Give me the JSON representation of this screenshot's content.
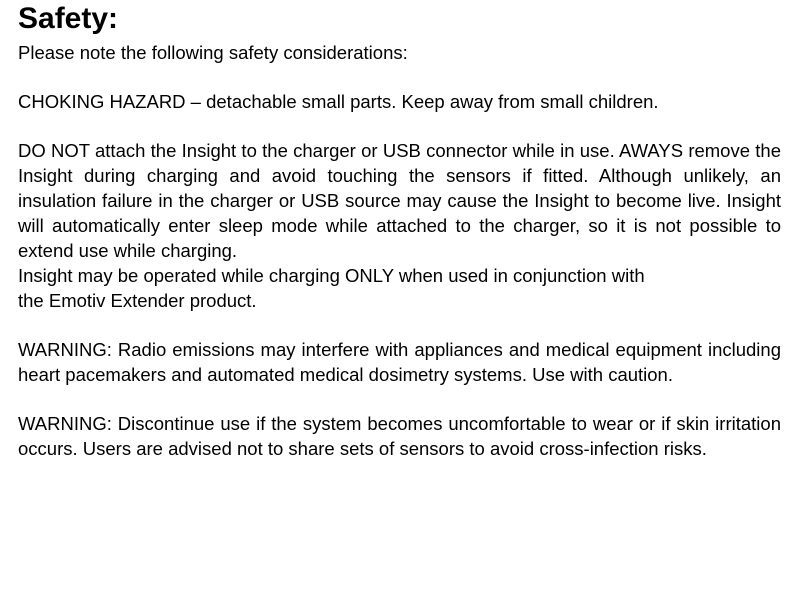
{
  "document": {
    "heading": "Safety:",
    "intro": "Please note the following safety considerations:",
    "choking": "CHOKING HAZARD – detachable small parts. Keep away from small children.",
    "donot_justified": "DO NOT attach the Insight to the charger or USB connector while in use. AWAYS remove the Insight during charging and avoid touching the sensors if fitted. Although unlikely, an insulation failure in the charger or USB source may cause the Insight to become live. Insight will automatically enter sleep mode while attached to the charger, so it is not possible to extend use while charging.",
    "donot_tail1": "Insight may be operated while charging ONLY when used in conjunction with",
    "donot_tail2": "the Emotiv Extender product.",
    "warn1": "WARNING: Radio emissions may interfere with appliances and medical equipment including heart pacemakers and automated medical dosimetry systems. Use with caution.",
    "warn2": "WARNING: Discontinue use if the system becomes uncomfortable to wear or if skin irritation occurs. Users are advised not to share sets of sensors to avoid cross-infection risks.",
    "text_color": "#000000",
    "background_color": "#ffffff",
    "heading_fontsize": 30,
    "body_fontsize": 18.5,
    "font_family": "Arial, Helvetica, sans-serif"
  }
}
